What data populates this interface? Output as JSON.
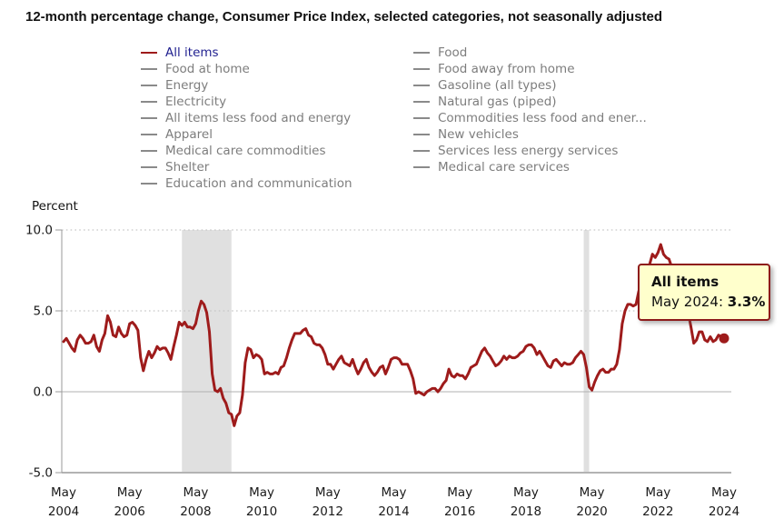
{
  "title": "12-month percentage change, Consumer Price Index, selected categories, not seasonally adjusted",
  "colors": {
    "line": "#9e1b1b",
    "recession_band": "#e0e0e0",
    "grid_dotted": "#c6c6c6",
    "zero_line": "#b0b0b0",
    "axis": "#9a9a9a",
    "bottom_axis": "#b3b3b3",
    "text": "#1a1a1a",
    "tooltip_bg": "#ffffcc",
    "tooltip_border": "#8e1b1b",
    "legend_active_dash": "#9e1b1b",
    "legend_active_text": "#1f1f8f",
    "legend_inactive_dash": "#8a8a8a",
    "legend_inactive_text": "#7d7d7d"
  },
  "legend": {
    "columns": [
      {
        "items": [
          {
            "label": "All items",
            "active": true
          },
          {
            "label": "Food at home",
            "active": false
          },
          {
            "label": "Energy",
            "active": false
          },
          {
            "label": "Electricity",
            "active": false
          },
          {
            "label": "All items less food and energy",
            "active": false
          },
          {
            "label": "Apparel",
            "active": false
          },
          {
            "label": "Medical care commodities",
            "active": false
          },
          {
            "label": "Shelter",
            "active": false
          },
          {
            "label": "Education and communication",
            "active": false
          }
        ]
      },
      {
        "items": [
          {
            "label": "Food",
            "active": false
          },
          {
            "label": "Food away from home",
            "active": false
          },
          {
            "label": "Gasoline (all types)",
            "active": false
          },
          {
            "label": "Natural gas (piped)",
            "active": false
          },
          {
            "label": "Commodities less food and ener...",
            "active": false
          },
          {
            "label": "New vehicles",
            "active": false
          },
          {
            "label": "Services less energy services",
            "active": false
          },
          {
            "label": "Medical care services",
            "active": false
          }
        ]
      }
    ]
  },
  "tooltip": {
    "series": "All items",
    "label": "May 2024:",
    "value": "3.3%"
  },
  "chart_data": {
    "type": "line",
    "title": "12-month percentage change, Consumer Price Index, selected categories, not seasonally adjusted",
    "xlabel": "",
    "ylabel": "Percent",
    "ylim": [
      -5.0,
      10.0
    ],
    "yticks": [
      10.0,
      5.0,
      0.0,
      -5.0
    ],
    "grid": "horizontal dotted at 5.0 and 10.0, solid at 0.0",
    "legend_position": "top (two columns), only 'All items' series plotted",
    "frequency": "monthly",
    "x_start": "May 2004",
    "x_end": "May 2024",
    "categories": [
      "May 2004",
      "May 2006",
      "May 2008",
      "May 2010",
      "May 2012",
      "May 2014",
      "May 2016",
      "May 2018",
      "May 2020",
      "May 2022",
      "May 2024"
    ],
    "recession_bands": [
      {
        "from": "Dec 2007",
        "to": "Jun 2009",
        "from_month_index": 43,
        "to_month_index": 61
      },
      {
        "from": "Feb 2020",
        "to": "Apr 2020",
        "from_month_index": 189,
        "to_month_index": 191
      }
    ],
    "last_point": {
      "x": "May 2024",
      "y": 3.3,
      "marker": "dot"
    },
    "series": [
      {
        "name": "All items",
        "color": "#9e1b1b",
        "values": [
          3.1,
          3.3,
          3.0,
          2.7,
          2.5,
          3.2,
          3.5,
          3.3,
          3.0,
          3.0,
          3.1,
          3.5,
          2.8,
          2.5,
          3.2,
          3.6,
          4.7,
          4.3,
          3.5,
          3.4,
          4.0,
          3.6,
          3.4,
          3.5,
          4.2,
          4.3,
          4.1,
          3.8,
          2.1,
          1.3,
          2.0,
          2.5,
          2.1,
          2.4,
          2.8,
          2.6,
          2.7,
          2.7,
          2.4,
          2.0,
          2.8,
          3.5,
          4.3,
          4.1,
          4.3,
          4.0,
          4.0,
          3.9,
          4.2,
          5.0,
          5.6,
          5.4,
          4.9,
          3.7,
          1.1,
          0.1,
          0.0,
          0.2,
          -0.4,
          -0.7,
          -1.3,
          -1.4,
          -2.1,
          -1.5,
          -1.3,
          -0.2,
          1.8,
          2.7,
          2.6,
          2.1,
          2.3,
          2.2,
          2.0,
          1.1,
          1.2,
          1.1,
          1.1,
          1.2,
          1.1,
          1.5,
          1.6,
          2.1,
          2.7,
          3.2,
          3.6,
          3.6,
          3.6,
          3.8,
          3.9,
          3.5,
          3.4,
          3.0,
          2.9,
          2.9,
          2.7,
          2.3,
          1.7,
          1.7,
          1.4,
          1.7,
          2.0,
          2.2,
          1.8,
          1.7,
          1.6,
          2.0,
          1.5,
          1.1,
          1.4,
          1.8,
          2.0,
          1.5,
          1.2,
          1.0,
          1.2,
          1.5,
          1.6,
          1.1,
          1.5,
          2.0,
          2.1,
          2.1,
          2.0,
          1.7,
          1.7,
          1.7,
          1.3,
          0.8,
          -0.1,
          0.0,
          -0.1,
          -0.2,
          0.0,
          0.1,
          0.2,
          0.2,
          0.0,
          0.2,
          0.5,
          0.7,
          1.4,
          1.0,
          0.9,
          1.1,
          1.0,
          1.0,
          0.8,
          1.1,
          1.5,
          1.6,
          1.7,
          2.1,
          2.5,
          2.7,
          2.4,
          2.2,
          1.9,
          1.6,
          1.7,
          1.9,
          2.2,
          2.0,
          2.2,
          2.1,
          2.1,
          2.2,
          2.4,
          2.5,
          2.8,
          2.9,
          2.9,
          2.7,
          2.3,
          2.5,
          2.2,
          1.9,
          1.6,
          1.5,
          1.9,
          2.0,
          1.8,
          1.6,
          1.8,
          1.7,
          1.7,
          1.8,
          2.1,
          2.3,
          2.5,
          2.3,
          1.5,
          0.3,
          0.1,
          0.6,
          1.0,
          1.3,
          1.4,
          1.2,
          1.2,
          1.4,
          1.4,
          1.7,
          2.6,
          4.2,
          5.0,
          5.4,
          5.4,
          5.3,
          5.4,
          6.2,
          6.8,
          7.0,
          7.5,
          7.9,
          8.5,
          8.3,
          8.6,
          9.1,
          8.5,
          8.3,
          8.2,
          7.7,
          7.1,
          6.5,
          6.4,
          6.0,
          5.0,
          4.9,
          4.0,
          3.0,
          3.2,
          3.7,
          3.7,
          3.2,
          3.1,
          3.4,
          3.1,
          3.2,
          3.5,
          3.4,
          3.3
        ]
      }
    ]
  }
}
